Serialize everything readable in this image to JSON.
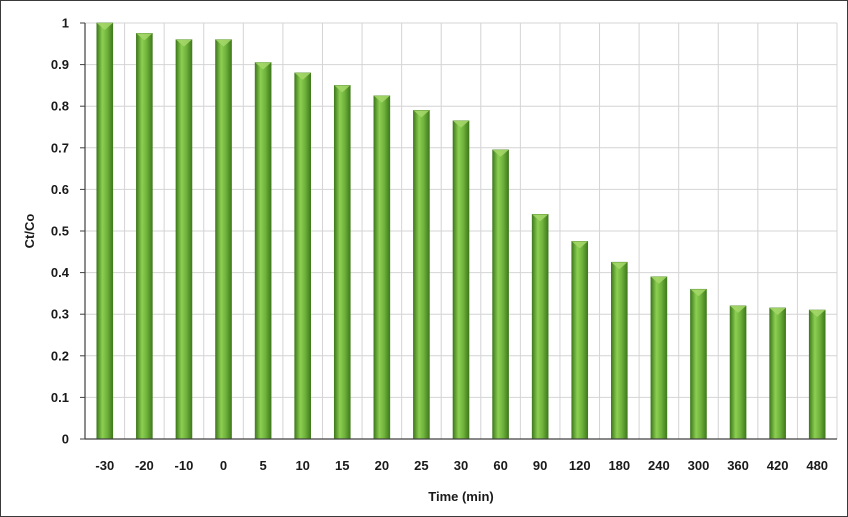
{
  "chart_data": {
    "type": "bar",
    "title": "",
    "xlabel": "Time (min)",
    "ylabel": "Ct/Co",
    "categories": [
      "-30",
      "-20",
      "-10",
      "0",
      "5",
      "10",
      "15",
      "20",
      "25",
      "30",
      "60",
      "90",
      "120",
      "180",
      "240",
      "300",
      "360",
      "420",
      "480"
    ],
    "values": [
      1.0,
      0.975,
      0.96,
      0.96,
      0.905,
      0.88,
      0.85,
      0.825,
      0.79,
      0.765,
      0.695,
      0.54,
      0.475,
      0.425,
      0.39,
      0.36,
      0.32,
      0.315,
      0.31
    ],
    "ylim": [
      0,
      1
    ],
    "yticks": [
      "0",
      "0.1",
      "0.2",
      "0.3",
      "0.4",
      "0.5",
      "0.6",
      "0.7",
      "0.8",
      "0.9",
      "1"
    ],
    "grid": true,
    "legend": "none",
    "colors": {
      "bar_main": "#6fb23c",
      "bar_light": "#a6d86a",
      "bar_dark": "#3f7a1c",
      "grid": "#d4d4d4",
      "axis": "#404040"
    }
  }
}
